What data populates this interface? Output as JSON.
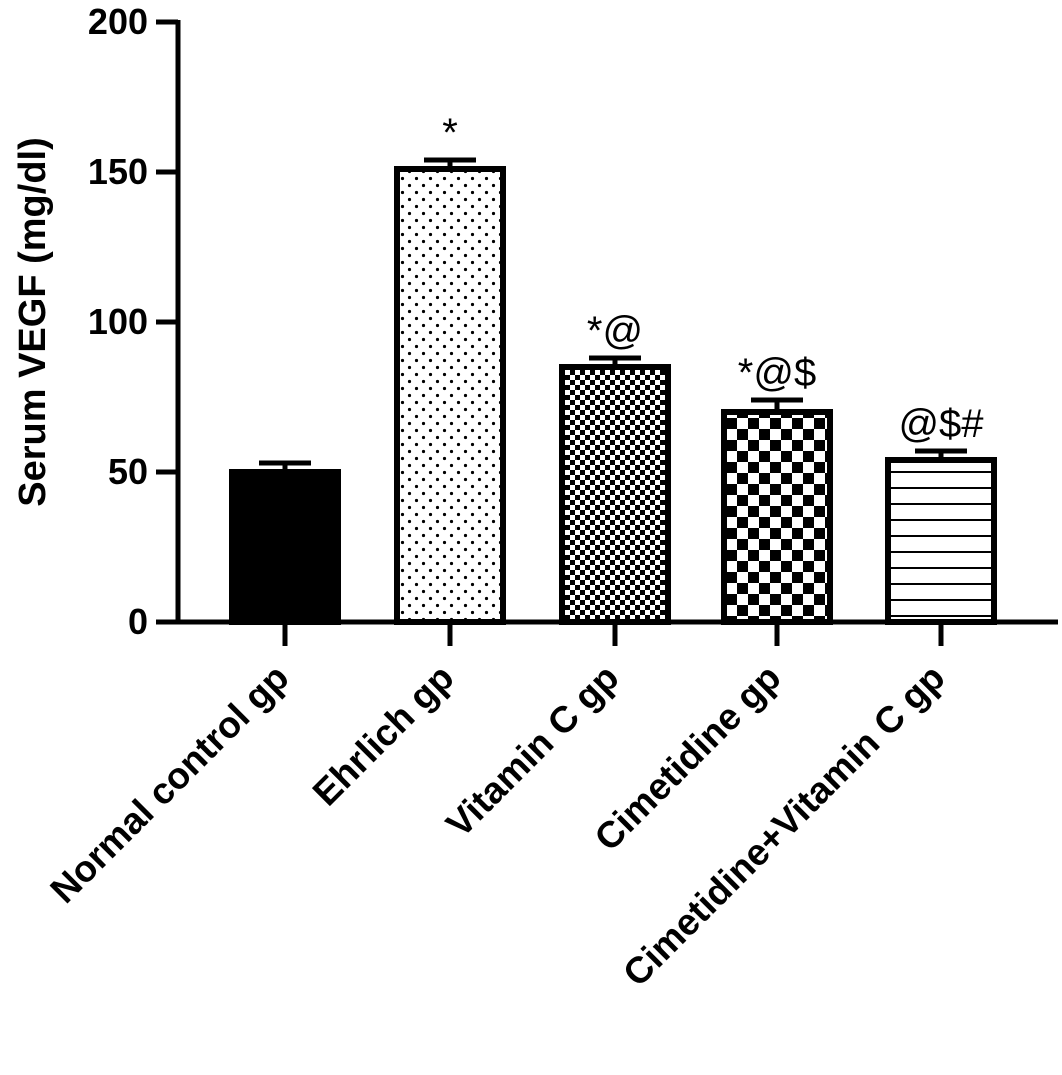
{
  "chart_data": {
    "type": "bar",
    "title": "",
    "xlabel": "",
    "ylabel": "Serum VEGF (mg/dl)",
    "ylim": [
      0,
      200
    ],
    "yticks": [
      0,
      50,
      100,
      150,
      200
    ],
    "categories": [
      "Normal control gp",
      "Ehrlich gp",
      "Vitamin C gp",
      "Cimetidine gp",
      "Cimetidine+Vitamin C gp"
    ],
    "values": [
      50,
      151,
      85,
      70,
      54
    ],
    "errors": [
      3,
      3,
      3,
      4,
      3
    ],
    "annotations": [
      "",
      "*",
      "*@",
      "*@$",
      "@$#"
    ],
    "fills": [
      "solid",
      "dots",
      "fine-checker",
      "checker",
      "horizontal-lines"
    ],
    "colors": {
      "bar_fill": "#000000",
      "background": "#ffffff"
    },
    "grid": false,
    "legend": "none"
  }
}
